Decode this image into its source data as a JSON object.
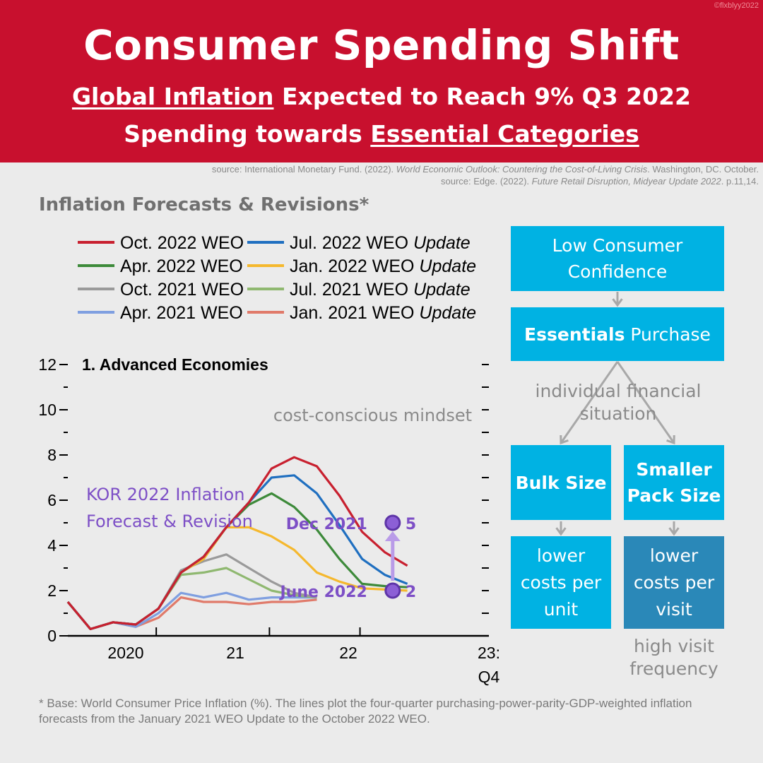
{
  "header": {
    "credit": "©flxblyy2022",
    "title": "Consumer Spending Shift",
    "sub1_underlined": "Global Inflation",
    "sub1_rest": " Expected to Reach 9% Q3 2022",
    "sub2_rest": "Spending towards ",
    "sub2_underlined": "Essential Categories",
    "color": "#c8102e"
  },
  "sources": {
    "s1_pre": "source: International Monetary Fund. (2022). ",
    "s1_italic": "World Economic Outlook: Countering the Cost-of-Living Crisis",
    "s1_post": ". Washington, DC. October.",
    "s2_pre": "source: Edge. (2022). ",
    "s2_italic": "Future Retail Disruption, Midyear Update 2022",
    "s2_post": ". p.11,14."
  },
  "chart_heading": "Inflation Forecasts & Revisions*",
  "chart_data": {
    "type": "line",
    "title": "1. Advanced Economies",
    "ylim": [
      0,
      12
    ],
    "y_ticks": [
      "0",
      "2",
      "4",
      "6",
      "8",
      "10",
      "12"
    ],
    "x_labels": [
      "2020",
      "21",
      "22",
      "23:",
      "Q4"
    ],
    "x_quarters": [
      "2019Q4",
      "2020Q1",
      "2020Q2",
      "2020Q3",
      "2020Q4",
      "2021Q1",
      "2021Q2",
      "2021Q3",
      "2021Q4",
      "2022Q1",
      "2022Q2",
      "2022Q3",
      "2022Q4",
      "2023Q1",
      "2023Q2",
      "2023Q3",
      "2023Q4"
    ],
    "series": [
      {
        "name": "Oct. 2022 WEO",
        "color": "#c8202f",
        "start": 0,
        "values": [
          1.5,
          0.3,
          0.6,
          0.5,
          1.2,
          2.8,
          3.5,
          4.8,
          5.9,
          7.4,
          7.9,
          7.5,
          6.2,
          4.6,
          3.7,
          3.1
        ]
      },
      {
        "name": "Jul. 2022 WEO Update",
        "color": "#1f6fc0",
        "start": 0,
        "values": [
          1.5,
          0.3,
          0.6,
          0.5,
          1.2,
          2.8,
          3.5,
          4.8,
          5.9,
          7.0,
          7.1,
          6.3,
          4.9,
          3.4,
          2.7,
          2.3
        ]
      },
      {
        "name": "Apr. 2022 WEO",
        "color": "#3d8a3a",
        "start": 0,
        "values": [
          1.5,
          0.3,
          0.6,
          0.5,
          1.2,
          2.8,
          3.5,
          4.8,
          5.8,
          6.3,
          5.7,
          4.7,
          3.4,
          2.3,
          2.2,
          2.15
        ]
      },
      {
        "name": "Jan. 2022 WEO Update",
        "color": "#f5b82e",
        "start": 0,
        "values": [
          1.5,
          0.3,
          0.6,
          0.5,
          1.2,
          2.8,
          3.4,
          4.8,
          4.8,
          4.4,
          3.8,
          2.8,
          2.4,
          2.1,
          2.05,
          2.0
        ]
      },
      {
        "name": "Oct. 2021 WEO",
        "color": "#9a9a9a",
        "start": 0,
        "values": [
          1.5,
          0.3,
          0.6,
          0.5,
          1.2,
          2.9,
          3.3,
          3.6,
          3.0,
          2.4,
          1.9,
          1.7
        ]
      },
      {
        "name": "Jul. 2021 WEO Update",
        "color": "#8fb870",
        "start": 0,
        "values": [
          1.5,
          0.3,
          0.6,
          0.5,
          1.2,
          2.7,
          2.8,
          3.0,
          2.5,
          2.0,
          1.8,
          1.7
        ]
      },
      {
        "name": "Apr. 2021 WEO",
        "color": "#7f9fe0",
        "start": 0,
        "values": [
          1.5,
          0.3,
          0.6,
          0.4,
          1.0,
          1.9,
          1.7,
          1.9,
          1.6,
          1.7,
          1.7,
          1.7
        ]
      },
      {
        "name": "Jan. 2021 WEO Update",
        "color": "#e07a6a",
        "start": 0,
        "values": [
          1.5,
          0.3,
          0.6,
          0.4,
          0.8,
          1.7,
          1.5,
          1.5,
          1.4,
          1.5,
          1.5,
          1.6
        ]
      }
    ],
    "annotations": {
      "kor_label_1": "KOR 2022 Inflation",
      "kor_label_2": "Forecast & Revision",
      "kor_color": "#7d4fc6",
      "points": [
        {
          "label": "Dec 2021",
          "value_label": "5",
          "x_quarter_index": 14.35,
          "y": 5
        },
        {
          "label": "June 2022",
          "value_label": "2",
          "x_quarter_index": 14.35,
          "y": 2
        }
      ],
      "mindset": "cost-conscious mindset"
    }
  },
  "flow": {
    "box1": "Low Consumer Confidence",
    "box2_bold": "Essentials",
    "box2_rest": " Purchase",
    "note_split": "individual financial situation",
    "bulk": "Bulk Size",
    "smaller": "Smaller Pack Size",
    "low_unit": "lower costs per unit",
    "low_visit": "lower costs per visit",
    "high_freq": "high visit frequency",
    "light_color": "#00b2e3",
    "dark_color": "#2a88b8"
  },
  "footnote": "* Base: World Consumer Price Inflation (%). The lines plot the four-quarter purchasing-power-parity-GDP-weighted inflation forecasts from the January 2021 WEO Update to the October 2022 WEO."
}
